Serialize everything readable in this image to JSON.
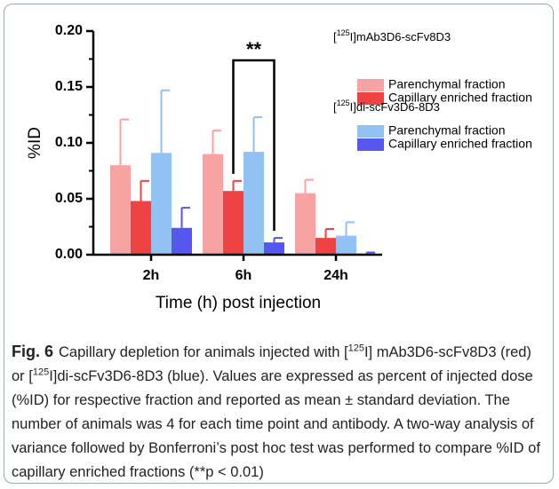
{
  "chart_data": {
    "type": "bar",
    "categories": [
      "2h",
      "6h",
      "24h"
    ],
    "series": [
      {
        "name": "Parenchymal fraction",
        "color": "#f7a3a3",
        "values": [
          0.08,
          0.09,
          0.055
        ],
        "errors": [
          0.041,
          0.021,
          0.012
        ]
      },
      {
        "name": "Capillary enriched fraction",
        "color": "#ef4343",
        "values": [
          0.048,
          0.057,
          0.015
        ],
        "errors": [
          0.018,
          0.009,
          0.008
        ]
      },
      {
        "name": "Parenchymal fraction",
        "color": "#92c2f2",
        "values": [
          0.091,
          0.092,
          0.017
        ],
        "errors": [
          0.056,
          0.031,
          0.012
        ]
      },
      {
        "name": "Capillary enriched fraction",
        "color": "#5757ef",
        "values": [
          0.024,
          0.011,
          0.001
        ],
        "errors": [
          0.018,
          0.004,
          0.001
        ]
      }
    ],
    "legend_titles": [
      [
        "[",
        "125",
        "I]mAb3D6-scFv8D3"
      ],
      [
        "[",
        "125",
        "I]di-scFv3D6-8D3"
      ]
    ],
    "annotation": "**",
    "ylabel": "%ID",
    "xlabel": "Time (h) post injection",
    "ylim": [
      0,
      0.2
    ],
    "yticks": [
      {
        "value": 0,
        "label": "0.00"
      },
      {
        "value": 0.05,
        "label": "0.05"
      },
      {
        "value": 0.1,
        "label": "0.10"
      },
      {
        "value": 0.15,
        "label": "0.15"
      },
      {
        "value": 0.2,
        "label": "0.20"
      }
    ],
    "yminor_ticks": [
      0.025,
      0.075,
      0.125,
      0.175
    ]
  },
  "caption": {
    "label": "Fig. 6",
    "parts": [
      "Capillary depletion for animals injected with [",
      "125",
      "I] mAb3D6-scFv8D3 (red) or [",
      "125",
      "I]di-scFv3D6-8D3 (blue). Values are expressed as percent of injected dose (%ID) for respective fraction and reported as mean ± standard deviation. The number of animals was 4 for each time point and antibody. A two-way analysis of variance followed by Bonferroni’s post hoc test was performed to compare %ID of capillary enriched fractions (**p < 0.01)"
    ]
  }
}
